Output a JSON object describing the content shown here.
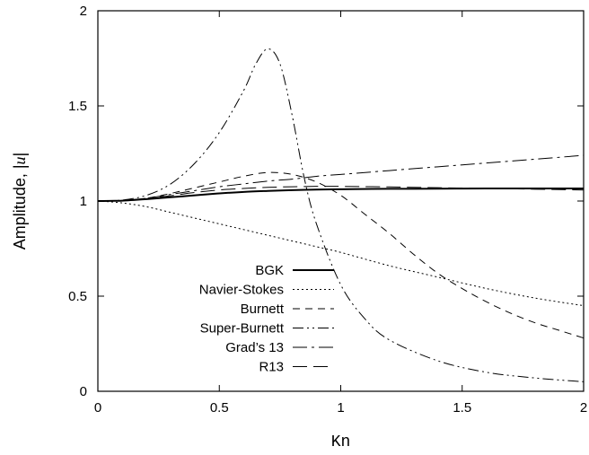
{
  "chart_data": {
    "type": "line",
    "title": "",
    "xlabel": "Kn",
    "ylabel": "Amplitude, |u|",
    "xlim": [
      0,
      2
    ],
    "ylim": [
      0,
      2
    ],
    "xticks": [
      0,
      0.5,
      1,
      1.5,
      2
    ],
    "yticks": [
      0,
      0.5,
      1,
      1.5,
      2
    ],
    "xtick_labels": [
      "0",
      "0.5",
      "1",
      "1.5",
      "2"
    ],
    "ytick_labels": [
      "0",
      "0.5",
      "1",
      "1.5",
      "2"
    ],
    "grid": false,
    "legend_position": "bottom-left",
    "series": [
      {
        "name": "BGK",
        "dash": "solid",
        "width": 2,
        "x": [
          0,
          0.1,
          0.2,
          0.3,
          0.4,
          0.5,
          0.6,
          0.7,
          0.8,
          0.9,
          1.0,
          1.2,
          1.4,
          1.6,
          1.8,
          2.0
        ],
        "y": [
          1.0,
          1.002,
          1.01,
          1.02,
          1.03,
          1.04,
          1.048,
          1.053,
          1.057,
          1.06,
          1.062,
          1.064,
          1.065,
          1.066,
          1.066,
          1.066
        ]
      },
      {
        "name": "Navier-Stokes",
        "dash": "dotted",
        "width": 1,
        "x": [
          0,
          0.1,
          0.2,
          0.3,
          0.4,
          0.5,
          0.6,
          0.7,
          0.8,
          0.9,
          1.0,
          1.2,
          1.4,
          1.6,
          1.8,
          2.0
        ],
        "y": [
          1.0,
          0.99,
          0.97,
          0.94,
          0.91,
          0.88,
          0.85,
          0.82,
          0.79,
          0.76,
          0.73,
          0.66,
          0.6,
          0.54,
          0.49,
          0.45
        ]
      },
      {
        "name": "Burnett",
        "dash": "dashed",
        "width": 1,
        "x": [
          0,
          0.1,
          0.2,
          0.3,
          0.4,
          0.5,
          0.6,
          0.7,
          0.8,
          0.9,
          1.0,
          1.1,
          1.2,
          1.3,
          1.4,
          1.5,
          1.6,
          1.7,
          1.8,
          1.9,
          2.0
        ],
        "y": [
          1.0,
          1.003,
          1.015,
          1.04,
          1.07,
          1.1,
          1.13,
          1.15,
          1.14,
          1.1,
          1.03,
          0.93,
          0.83,
          0.72,
          0.62,
          0.54,
          0.47,
          0.41,
          0.36,
          0.32,
          0.28
        ]
      },
      {
        "name": "Super-Burnett",
        "dash": "dash-dot-dot",
        "width": 1,
        "x": [
          0,
          0.1,
          0.2,
          0.3,
          0.4,
          0.5,
          0.6,
          0.65,
          0.7,
          0.75,
          0.8,
          0.85,
          0.9,
          1.0,
          1.1,
          1.2,
          1.4,
          1.6,
          1.8,
          2.0
        ],
        "y": [
          1.0,
          1.005,
          1.03,
          1.09,
          1.2,
          1.36,
          1.58,
          1.72,
          1.8,
          1.72,
          1.45,
          1.12,
          0.88,
          0.56,
          0.38,
          0.27,
          0.16,
          0.1,
          0.07,
          0.05
        ]
      },
      {
        "name": "Grad’s 13",
        "dash": "long-dash-dot",
        "width": 1,
        "x": [
          0,
          0.1,
          0.2,
          0.3,
          0.4,
          0.5,
          0.6,
          0.7,
          0.8,
          0.9,
          1.0,
          1.2,
          1.4,
          1.6,
          1.8,
          2.0
        ],
        "y": [
          1.0,
          1.003,
          1.015,
          1.035,
          1.055,
          1.075,
          1.09,
          1.105,
          1.115,
          1.13,
          1.14,
          1.16,
          1.18,
          1.2,
          1.22,
          1.24
        ]
      },
      {
        "name": "R13",
        "dash": "long-dash",
        "width": 1,
        "x": [
          0,
          0.1,
          0.2,
          0.3,
          0.4,
          0.5,
          0.6,
          0.7,
          0.8,
          0.9,
          1.0,
          1.2,
          1.4,
          1.6,
          1.8,
          2.0
        ],
        "y": [
          1.0,
          1.002,
          1.012,
          1.028,
          1.045,
          1.058,
          1.066,
          1.072,
          1.075,
          1.077,
          1.077,
          1.074,
          1.07,
          1.066,
          1.062,
          1.058
        ]
      }
    ]
  }
}
